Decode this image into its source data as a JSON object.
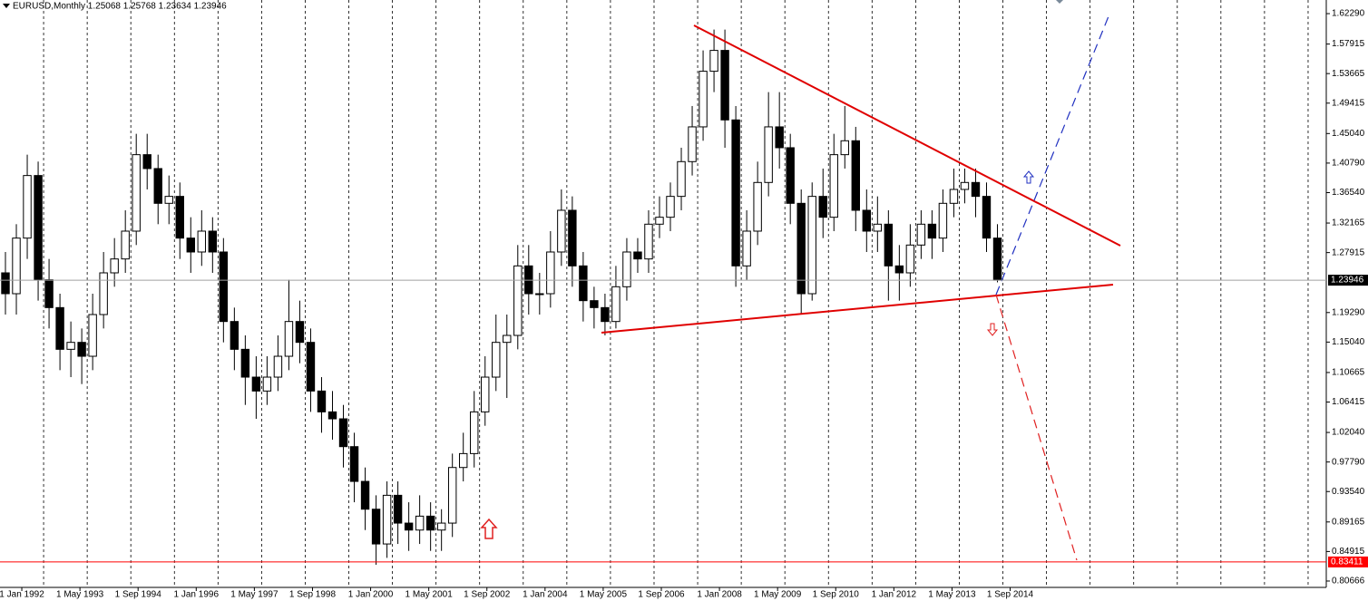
{
  "chart_data": {
    "type": "candlestick",
    "header": "EURUSD,Monthly  1.25068 1.25768 1.23634 1.23946",
    "x": [
      "1 Jul 1991",
      "1 Oct 1991",
      "1 Jan 1992",
      "1 Apr 1992",
      "1 Jul 1992",
      "1 Oct 1992",
      "1 Jan 1993",
      "1 Apr 1993",
      "1 Jul 1993",
      "1 Oct 1993",
      "1 Jan 1994",
      "1 Apr 1994",
      "1 Jul 1994",
      "1 Oct 1994",
      "1 Jan 1995",
      "1 Apr 1995",
      "1 Jul 1995",
      "1 Oct 1995",
      "1 Jan 1996",
      "1 Apr 1996",
      "1 Jul 1996",
      "1 Oct 1996",
      "1 Jan 1997",
      "1 Apr 1997",
      "1 Jul 1997",
      "1 Oct 1997",
      "1 Jan 1998",
      "1 Apr 1998",
      "1 Jul 1998",
      "1 Oct 1998",
      "1 Jan 1999",
      "1 Apr 1999",
      "1 Jul 1999",
      "1 Oct 1999",
      "1 Jan 2000",
      "1 Apr 2000",
      "1 Jul 2000",
      "1 Oct 2000",
      "1 Jan 2001",
      "1 Apr 2001",
      "1 Jul 2001",
      "1 Oct 2001",
      "1 Jan 2002",
      "1 Apr 2002",
      "1 Jul 2002",
      "1 Oct 2002",
      "1 Jan 2003",
      "1 Apr 2003",
      "1 Jul 2003",
      "1 Oct 2003",
      "1 Jan 2004",
      "1 Apr 2004",
      "1 Jul 2004",
      "1 Oct 2004",
      "1 Jan 2005",
      "1 Apr 2005",
      "1 Jul 2005",
      "1 Oct 2005",
      "1 Jan 2006",
      "1 Apr 2006",
      "1 Jul 2006",
      "1 Oct 2006",
      "1 Jan 2007",
      "1 Apr 2007",
      "1 Jul 2007",
      "1 Oct 2007",
      "1 Jan 2008",
      "1 Apr 2008",
      "1 Jul 2008",
      "1 Oct 2008",
      "1 Jan 2009",
      "1 Apr 2009",
      "1 Jul 2009",
      "1 Oct 2009",
      "1 Jan 2010",
      "1 Apr 2010",
      "1 Jul 2010",
      "1 Oct 2010",
      "1 Jan 2011",
      "1 Apr 2011",
      "1 Jul 2011",
      "1 Oct 2011",
      "1 Jan 2012",
      "1 Apr 2012",
      "1 Jul 2012",
      "1 Oct 2012",
      "1 Jan 2013",
      "1 Apr 2013",
      "1 Jul 2013",
      "1 Oct 2013",
      "1 Jan 2014",
      "1 Apr 2014"
    ],
    "open": [
      1.25,
      1.22,
      1.3,
      1.39,
      1.24,
      1.2,
      1.14,
      1.15,
      1.13,
      1.19,
      1.25,
      1.27,
      1.31,
      1.42,
      1.4,
      1.35,
      1.36,
      1.3,
      1.28,
      1.31,
      1.28,
      1.18,
      1.14,
      1.1,
      1.08,
      1.1,
      1.13,
      1.18,
      1.15,
      1.08,
      1.05,
      1.04,
      1.0,
      0.95,
      0.91,
      0.86,
      0.93,
      0.89,
      0.88,
      0.9,
      0.88,
      0.89,
      0.97,
      0.99,
      1.05,
      1.1,
      1.15,
      1.16,
      1.26,
      1.22,
      1.22,
      1.28,
      1.34,
      1.26,
      1.21,
      1.2,
      1.18,
      1.23,
      1.28,
      1.27,
      1.32,
      1.33,
      1.36,
      1.41,
      1.46,
      1.54,
      1.57,
      1.47,
      1.26,
      1.31,
      1.38,
      1.46,
      1.43,
      1.35,
      1.22,
      1.36,
      1.33,
      1.42,
      1.44,
      1.34,
      1.31,
      1.32,
      1.26,
      1.25,
      1.29,
      1.32,
      1.3,
      1.35,
      1.37,
      1.38,
      1.36,
      1.3
    ],
    "high": [
      1.28,
      1.32,
      1.42,
      1.41,
      1.27,
      1.22,
      1.18,
      1.17,
      1.22,
      1.28,
      1.3,
      1.34,
      1.45,
      1.45,
      1.42,
      1.39,
      1.38,
      1.33,
      1.34,
      1.33,
      1.3,
      1.2,
      1.16,
      1.13,
      1.13,
      1.16,
      1.24,
      1.21,
      1.17,
      1.1,
      1.08,
      1.06,
      1.02,
      0.97,
      0.93,
      0.95,
      0.95,
      0.92,
      0.93,
      0.92,
      0.91,
      0.99,
      1.02,
      1.08,
      1.13,
      1.19,
      1.19,
      1.29,
      1.29,
      1.25,
      1.31,
      1.37,
      1.36,
      1.28,
      1.23,
      1.22,
      1.26,
      1.3,
      1.3,
      1.34,
      1.36,
      1.38,
      1.43,
      1.49,
      1.57,
      1.6,
      1.6,
      1.49,
      1.34,
      1.41,
      1.51,
      1.51,
      1.45,
      1.37,
      1.38,
      1.4,
      1.45,
      1.49,
      1.46,
      1.37,
      1.36,
      1.34,
      1.29,
      1.32,
      1.34,
      1.34,
      1.37,
      1.4,
      1.4,
      1.4,
      1.38,
      1.32
    ],
    "low": [
      1.19,
      1.19,
      1.27,
      1.21,
      1.17,
      1.11,
      1.1,
      1.09,
      1.11,
      1.17,
      1.23,
      1.25,
      1.29,
      1.37,
      1.32,
      1.32,
      1.27,
      1.25,
      1.26,
      1.25,
      1.15,
      1.11,
      1.06,
      1.04,
      1.06,
      1.08,
      1.11,
      1.12,
      1.05,
      1.02,
      1.01,
      0.97,
      0.92,
      0.88,
      0.83,
      0.84,
      0.86,
      0.85,
      0.86,
      0.85,
      0.85,
      0.87,
      0.95,
      0.97,
      1.03,
      1.08,
      1.07,
      1.14,
      1.19,
      1.19,
      1.2,
      1.26,
      1.23,
      1.18,
      1.17,
      1.16,
      1.17,
      1.21,
      1.25,
      1.25,
      1.3,
      1.31,
      1.34,
      1.39,
      1.44,
      1.51,
      1.43,
      1.23,
      1.24,
      1.29,
      1.36,
      1.4,
      1.32,
      1.19,
      1.21,
      1.3,
      1.31,
      1.4,
      1.31,
      1.28,
      1.28,
      1.21,
      1.21,
      1.23,
      1.27,
      1.27,
      1.28,
      1.33,
      1.35,
      1.33,
      1.28,
      1.23634
    ],
    "close": [
      1.22,
      1.3,
      1.39,
      1.24,
      1.2,
      1.14,
      1.15,
      1.13,
      1.19,
      1.25,
      1.27,
      1.31,
      1.42,
      1.4,
      1.35,
      1.36,
      1.3,
      1.28,
      1.31,
      1.28,
      1.18,
      1.14,
      1.1,
      1.08,
      1.1,
      1.13,
      1.18,
      1.15,
      1.08,
      1.05,
      1.04,
      1.0,
      0.95,
      0.91,
      0.86,
      0.93,
      0.89,
      0.88,
      0.9,
      0.88,
      0.89,
      0.97,
      0.99,
      1.05,
      1.1,
      1.15,
      1.16,
      1.26,
      1.22,
      1.22,
      1.28,
      1.34,
      1.26,
      1.21,
      1.2,
      1.18,
      1.23,
      1.28,
      1.27,
      1.32,
      1.33,
      1.36,
      1.41,
      1.46,
      1.54,
      1.57,
      1.47,
      1.26,
      1.31,
      1.38,
      1.46,
      1.43,
      1.35,
      1.22,
      1.36,
      1.33,
      1.42,
      1.44,
      1.34,
      1.31,
      1.32,
      1.26,
      1.25,
      1.29,
      1.32,
      1.3,
      1.35,
      1.37,
      1.38,
      1.36,
      1.3,
      1.23946
    ],
    "up_color": "#ffffff",
    "down_color": "#000000",
    "outline_color": "#000000",
    "xlim": [
      "1 Jul 1991",
      "1 Dec 2021"
    ],
    "xticks": [
      "1 Jan 1992",
      "1 May 1993",
      "1 Sep 1994",
      "1 Jan 1996",
      "1 May 1997",
      "1 Sep 1998",
      "1 Jan 2000",
      "1 May 2001",
      "1 Sep 2002",
      "1 Jan 2004",
      "1 May 2005",
      "1 Sep 2006",
      "1 Jan 2008",
      "1 May 2009",
      "1 Sep 2010",
      "1 Jan 2012",
      "1 May 2013",
      "1 Sep 2014"
    ],
    "ylim": [
      0.7975,
      1.6425
    ],
    "yticks": [
      {
        "value": 1.6229,
        "label": "1.62290"
      },
      {
        "value": 1.57915,
        "label": "1.57915"
      },
      {
        "value": 1.53665,
        "label": "1.53665"
      },
      {
        "value": 1.49415,
        "label": "1.49415"
      },
      {
        "value": 1.4504,
        "label": "1.45040"
      },
      {
        "value": 1.4079,
        "label": "1.40790"
      },
      {
        "value": 1.3654,
        "label": "1.36540"
      },
      {
        "value": 1.32165,
        "label": "1.32165"
      },
      {
        "value": 1.27915,
        "label": "1.27915"
      },
      {
        "value": 1.1929,
        "label": "1.19290"
      },
      {
        "value": 1.1504,
        "label": "1.15040"
      },
      {
        "value": 1.10665,
        "label": "1.10665"
      },
      {
        "value": 1.06415,
        "label": "1.06415"
      },
      {
        "value": 1.0204,
        "label": "1.02040"
      },
      {
        "value": 0.9779,
        "label": "0.97790"
      },
      {
        "value": 0.9354,
        "label": "0.93540"
      },
      {
        "value": 0.89165,
        "label": "0.89165"
      },
      {
        "value": 0.84915,
        "label": "0.84915"
      },
      {
        "value": 0.80666,
        "label": "0.80666"
      }
    ],
    "price_lines": [
      {
        "value": 1.23946,
        "label": "1.23946",
        "color": "#a0a0a0",
        "label_bg": "#000000"
      },
      {
        "value": 0.83411,
        "label": "0.83411",
        "color": "#ff0000",
        "label_bg": "#ff0000"
      }
    ]
  }
}
